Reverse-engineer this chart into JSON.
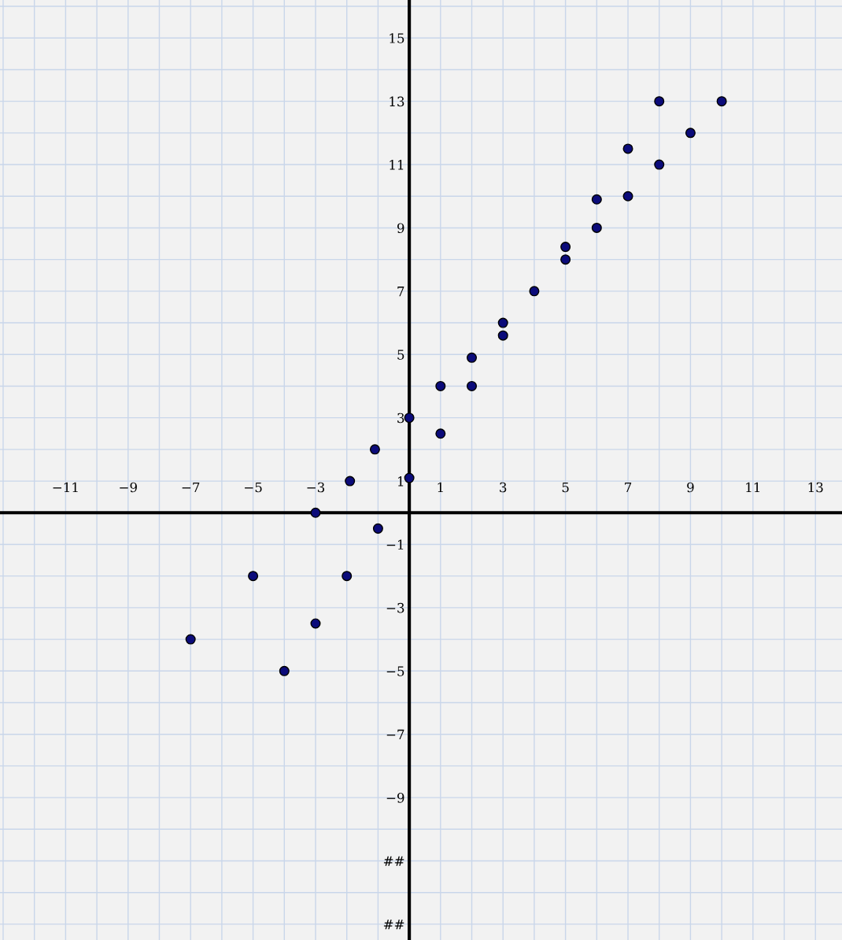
{
  "chart_data": {
    "type": "scatter",
    "series": [
      {
        "color": "#0b0b7a",
        "x": [
          10,
          8,
          9,
          7,
          8,
          6,
          7,
          6,
          5,
          5,
          4,
          3,
          3,
          2,
          2,
          1,
          0,
          1,
          -1.1,
          -1.9,
          0,
          -3,
          -1,
          -5,
          -2,
          -3,
          -7,
          -4
        ],
        "values": [
          13,
          13,
          12,
          11.5,
          11,
          9.9,
          10,
          9,
          8.4,
          8,
          7,
          6,
          5.6,
          4.9,
          4,
          4,
          3,
          2.5,
          2,
          1,
          1.1,
          0,
          -0.5,
          -2,
          -2,
          -3.5,
          -4,
          -5
        ]
      }
    ],
    "marker": "circle",
    "grid": true,
    "xlim": [
      -13.1,
      13.85
    ],
    "ylim": [
      -13.5,
      16.2
    ],
    "xticks": [
      -11,
      -9,
      -7,
      -5,
      -3,
      1,
      3,
      5,
      7,
      9,
      11,
      13
    ],
    "yticks": [
      {
        "value": -13,
        "label": "##"
      },
      {
        "value": -11,
        "label": "##"
      },
      -9,
      -7,
      -5,
      -3,
      -1,
      1,
      3,
      5,
      7,
      9,
      11,
      13,
      15
    ]
  }
}
